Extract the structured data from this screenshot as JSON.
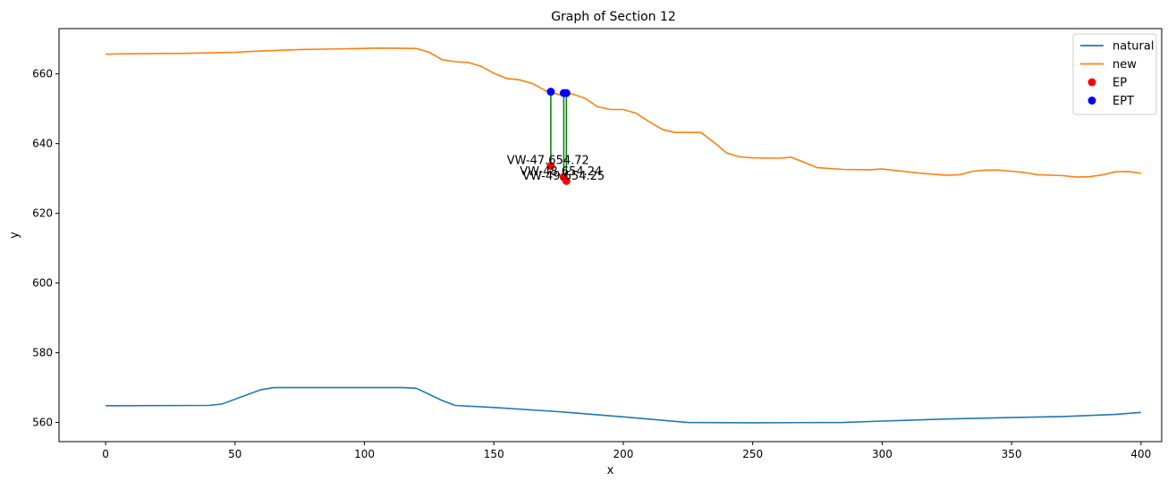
{
  "chart_data": {
    "type": "line",
    "title": "Graph of Section 12",
    "xlabel": "x",
    "ylabel": "y",
    "xlim": [
      -18,
      408
    ],
    "ylim": [
      554.5,
      673
    ],
    "xticks": [
      0,
      50,
      100,
      150,
      200,
      250,
      300,
      350,
      400
    ],
    "yticks": [
      560,
      580,
      600,
      620,
      640,
      660
    ],
    "grid": false,
    "legend_position": "top-right",
    "series": [
      {
        "name": "natural",
        "color": "#1f77b4",
        "x": [
          0,
          40,
          45,
          60,
          65,
          80,
          100,
          115,
          120,
          130,
          135,
          150,
          175,
          200,
          225,
          250,
          285,
          300,
          325,
          350,
          370,
          390,
          400
        ],
        "y": [
          564.8,
          564.9,
          565.3,
          569.4,
          570.0,
          570.0,
          570.0,
          570.0,
          569.8,
          566.3,
          564.9,
          564.3,
          563.1,
          561.6,
          560.0,
          559.9,
          560.0,
          560.4,
          561.0,
          561.4,
          561.7,
          562.3,
          562.9
        ]
      },
      {
        "name": "new",
        "color": "#ff7f0e",
        "x": [
          0,
          10,
          30,
          50,
          55,
          75,
          100,
          105,
          120,
          125,
          130,
          135,
          140,
          145,
          150,
          155,
          160,
          165,
          170,
          175,
          180,
          185,
          190,
          195,
          200,
          205,
          210,
          215,
          220,
          225,
          230,
          235,
          240,
          245,
          250,
          260,
          265,
          270,
          275,
          285,
          295,
          300,
          315,
          325,
          330,
          335,
          340,
          345,
          350,
          355,
          360,
          370,
          375,
          380,
          385,
          390,
          395,
          400
        ],
        "y": [
          665.7,
          665.8,
          665.9,
          666.2,
          666.4,
          667.0,
          667.3,
          667.4,
          667.3,
          666.2,
          664.1,
          663.5,
          663.3,
          662.2,
          660.2,
          658.7,
          658.3,
          657.2,
          655.2,
          654.1,
          654.3,
          653.1,
          650.6,
          649.8,
          649.8,
          648.7,
          646.3,
          644.1,
          643.2,
          643.2,
          643.2,
          640.4,
          637.3,
          636.2,
          635.9,
          635.8,
          636.1,
          634.6,
          633.1,
          632.6,
          632.5,
          632.7,
          631.5,
          630.9,
          631.1,
          632.1,
          632.4,
          632.4,
          632.1,
          631.7,
          631.1,
          630.8,
          630.4,
          630.5,
          631.0,
          631.9,
          632.0,
          631.5
        ]
      }
    ],
    "scatter": [
      {
        "name": "EP",
        "color": "#ff0000",
        "points": [
          {
            "x": 172,
            "y": 633.6
          },
          {
            "x": 177,
            "y": 630.4
          },
          {
            "x": 178,
            "y": 629.3
          }
        ]
      },
      {
        "name": "EPT",
        "color": "#0000ff",
        "points": [
          {
            "x": 172,
            "y": 654.9
          },
          {
            "x": 177,
            "y": 654.5
          },
          {
            "x": 178,
            "y": 654.5
          }
        ]
      }
    ],
    "connectors_color": "#008000",
    "annotations": [
      {
        "text": "VW-47.654.72",
        "x": 155,
        "y": 634.1
      },
      {
        "text": "VW-48.654.24",
        "x": 160,
        "y": 630.9
      },
      {
        "text": "VW-49.654.25",
        "x": 161,
        "y": 629.6
      }
    ]
  }
}
